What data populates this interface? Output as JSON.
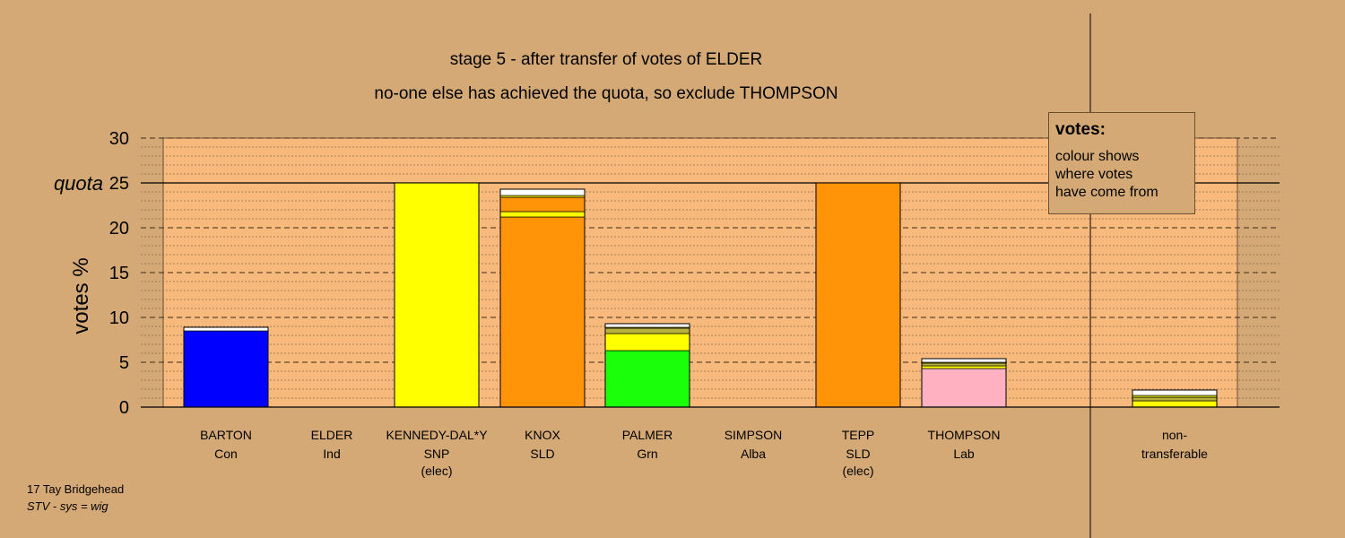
{
  "header": {
    "line1": "stage 5 - after transfer of votes of ELDER",
    "line2": "no-one else has achieved the quota, so exclude THOMPSON"
  },
  "legend": {
    "title": "votes:",
    "lines": [
      "colour shows",
      "where votes",
      "have come from"
    ]
  },
  "footer": {
    "ward": "17 Tay Bridgehead",
    "system": "STV - sys = wig"
  },
  "colors": {
    "background": "#d4a976",
    "plot_area": "#f8b97c",
    "Con": "#0000ff",
    "SNP": "#ffff00",
    "SLD": "#ff9408",
    "Grn": "#1aff0a",
    "Lab": "#ffb1c2",
    "Ind": "#ffffff",
    "olive": "#b8b23c"
  },
  "chart_data": {
    "type": "bar",
    "stacked": true,
    "ylabel": "votes %",
    "ylim": [
      0,
      30
    ],
    "yticks": [
      0,
      5,
      10,
      15,
      20,
      25,
      30
    ],
    "quota": 25,
    "quota_label": "quota",
    "grid": true,
    "candidates": [
      {
        "name": "BARTON",
        "party": "Con",
        "status": "",
        "total": 8.9,
        "segments": [
          {
            "source": "Con",
            "value": 8.5
          },
          {
            "source": "Ind",
            "value": 0.4
          }
        ]
      },
      {
        "name": "ELDER",
        "party": "Ind",
        "status": "",
        "total": 0,
        "segments": []
      },
      {
        "name": "KENNEDY-DAL*Y",
        "party": "SNP",
        "status": "(elec)",
        "total": 25.0,
        "segments": [
          {
            "source": "SNP",
            "value": 25.0
          }
        ]
      },
      {
        "name": "KNOX",
        "party": "SLD",
        "status": "",
        "total": 24.3,
        "segments": [
          {
            "source": "SLD",
            "value": 21.2
          },
          {
            "source": "SNP",
            "value": 0.6
          },
          {
            "source": "SLD",
            "value": 1.6
          },
          {
            "source": "SNP",
            "value": 0.2
          },
          {
            "source": "Ind",
            "value": 0.7
          }
        ]
      },
      {
        "name": "PALMER",
        "party": "Grn",
        "status": "",
        "total": 9.3,
        "segments": [
          {
            "source": "Grn",
            "value": 6.3
          },
          {
            "source": "SNP",
            "value": 1.9
          },
          {
            "source": "olive",
            "value": 0.6
          },
          {
            "source": "SNP",
            "value": 0.1
          },
          {
            "source": "Ind",
            "value": 0.4
          }
        ]
      },
      {
        "name": "SIMPSON",
        "party": "Alba",
        "status": "",
        "total": 0,
        "segments": []
      },
      {
        "name": "TEPP",
        "party": "SLD",
        "status": "(elec)",
        "total": 25.0,
        "segments": [
          {
            "source": "SLD",
            "value": 25.0
          }
        ]
      },
      {
        "name": "THOMPSON",
        "party": "Lab",
        "status": "",
        "total": 5.4,
        "segments": [
          {
            "source": "Lab",
            "value": 4.3
          },
          {
            "source": "SNP",
            "value": 0.3
          },
          {
            "source": "olive",
            "value": 0.3
          },
          {
            "source": "SNP",
            "value": 0.1
          },
          {
            "source": "Ind",
            "value": 0.4
          }
        ]
      }
    ],
    "nontransferable": {
      "label_line1": "non-",
      "label_line2": "transferable",
      "total": 1.9,
      "segments": [
        {
          "source": "SNP",
          "value": 0.7
        },
        {
          "source": "olive",
          "value": 0.4
        },
        {
          "source": "SNP",
          "value": 0.2
        },
        {
          "source": "Ind",
          "value": 0.6
        }
      ]
    }
  }
}
